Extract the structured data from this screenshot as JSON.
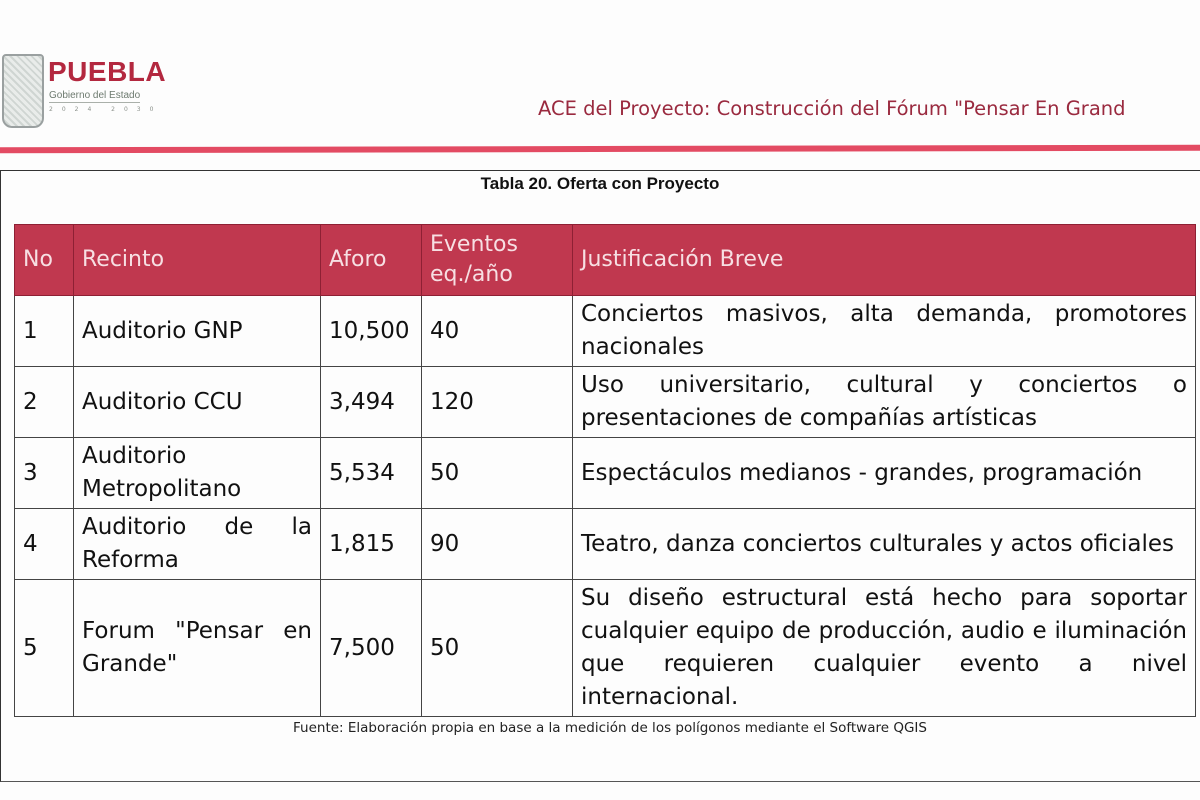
{
  "header": {
    "logo": {
      "brand": "PUEBLA",
      "subtitle": "Gobierno del Estado",
      "years": "2024 2030"
    },
    "document_title": "ACE del Proyecto: Construcción del Fórum \"Pensar En Grand"
  },
  "table": {
    "caption": "Tabla 20. Oferta con Proyecto",
    "columns": [
      "No",
      "Recinto",
      "Aforo",
      "Eventos eq./año",
      "Justificación Breve"
    ],
    "rows": [
      {
        "no": "1",
        "recinto": "Auditorio GNP",
        "aforo": "10,500",
        "eventos": "40",
        "justificacion": "Conciertos masivos, alta demanda, promotores nacionales"
      },
      {
        "no": "2",
        "recinto": "Auditorio CCU",
        "aforo": "3,494",
        "eventos": "120",
        "justificacion": "Uso universitario, cultural y conciertos o presentaciones de compañías artísticas"
      },
      {
        "no": "3",
        "recinto": "Auditorio Metropolitano",
        "aforo": "5,534",
        "eventos": "50",
        "justificacion": "Espectáculos medianos - grandes, programación"
      },
      {
        "no": "4",
        "recinto": "Auditorio de la Reforma",
        "aforo": "1,815",
        "eventos": "90",
        "justificacion": "Teatro, danza conciertos culturales y actos oficiales"
      },
      {
        "no": "5",
        "recinto": "Forum \"Pensar en Grande\"",
        "aforo": "7,500",
        "eventos": "50",
        "justificacion": "Su diseño estructural está hecho para soportar cualquier equipo de producción, audio e iluminación que requieren cualquier evento a nivel internacional."
      }
    ],
    "source": "Fuente: Elaboración propia en base a la medición de los polígonos mediante el Software QGIS"
  },
  "colors": {
    "header_red": "#c0384f",
    "rule_red": "#e34b63",
    "title_red": "#9a2a3f"
  }
}
